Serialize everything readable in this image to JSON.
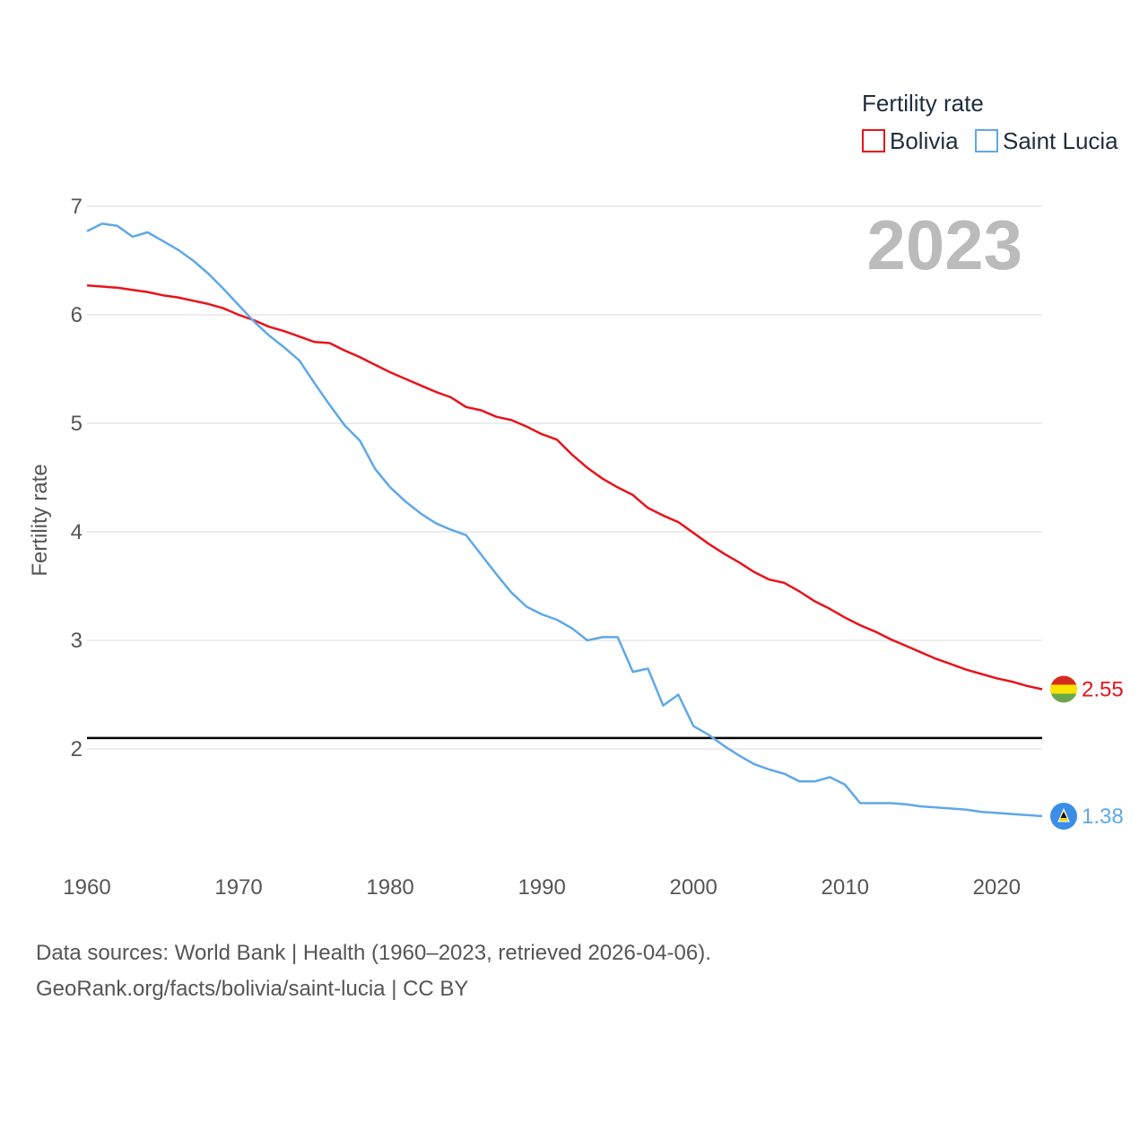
{
  "chart_data": {
    "type": "line",
    "legend_title": "Fertility rate",
    "ylabel": "Fertility rate",
    "year_label": "2023",
    "x_ticks": [
      "1960",
      "1970",
      "1980",
      "1990",
      "2000",
      "2010",
      "2020"
    ],
    "y_ticks": [
      "7",
      "6",
      "5",
      "4",
      "3",
      "2"
    ],
    "xlim": [
      1960,
      2023
    ],
    "ylim": [
      1.0,
      7.0
    ],
    "reference_line": 2.1,
    "x": [
      1960,
      1961,
      1962,
      1963,
      1964,
      1965,
      1966,
      1967,
      1968,
      1969,
      1970,
      1971,
      1972,
      1973,
      1974,
      1975,
      1976,
      1977,
      1978,
      1979,
      1980,
      1981,
      1982,
      1983,
      1984,
      1985,
      1986,
      1987,
      1988,
      1989,
      1990,
      1991,
      1992,
      1993,
      1994,
      1995,
      1996,
      1997,
      1998,
      1999,
      2000,
      2001,
      2002,
      2003,
      2004,
      2005,
      2006,
      2007,
      2008,
      2009,
      2010,
      2011,
      2012,
      2013,
      2014,
      2015,
      2016,
      2017,
      2018,
      2019,
      2020,
      2021,
      2022,
      2023
    ],
    "series": [
      {
        "name": "Bolivia",
        "color": "#e8131b",
        "end_label": "2.55",
        "flag": "bolivia-flag",
        "values": [
          6.27,
          6.26,
          6.25,
          6.23,
          6.21,
          6.18,
          6.16,
          6.13,
          6.1,
          6.06,
          6.0,
          5.95,
          5.89,
          5.85,
          5.8,
          5.75,
          5.74,
          5.67,
          5.61,
          5.54,
          5.47,
          5.41,
          5.35,
          5.29,
          5.24,
          5.15,
          5.12,
          5.06,
          5.03,
          4.97,
          4.9,
          4.85,
          4.71,
          4.59,
          4.49,
          4.41,
          4.34,
          4.22,
          4.15,
          4.09,
          3.99,
          3.89,
          3.8,
          3.72,
          3.63,
          3.56,
          3.53,
          3.45,
          3.36,
          3.29,
          3.21,
          3.14,
          3.08,
          3.01,
          2.95,
          2.89,
          2.83,
          2.78,
          2.73,
          2.69,
          2.65,
          2.62,
          2.58,
          2.55
        ]
      },
      {
        "name": "Saint Lucia",
        "color": "#5ea8e8",
        "end_label": "1.38",
        "flag": "saint-lucia-flag",
        "values": [
          6.77,
          6.84,
          6.82,
          6.72,
          6.76,
          6.68,
          6.6,
          6.5,
          6.38,
          6.24,
          6.09,
          5.94,
          5.81,
          5.7,
          5.58,
          5.37,
          5.17,
          4.98,
          4.84,
          4.58,
          4.41,
          4.28,
          4.17,
          4.08,
          4.02,
          3.97,
          3.79,
          3.61,
          3.44,
          3.31,
          3.24,
          3.19,
          3.11,
          3.0,
          3.03,
          3.03,
          2.71,
          2.74,
          2.4,
          2.5,
          2.21,
          2.13,
          2.03,
          1.94,
          1.86,
          1.81,
          1.77,
          1.7,
          1.7,
          1.74,
          1.67,
          1.5,
          1.5,
          1.5,
          1.49,
          1.47,
          1.46,
          1.45,
          1.44,
          1.42,
          1.41,
          1.4,
          1.39,
          1.38
        ]
      }
    ]
  },
  "footer": {
    "line1": "Data sources: World Bank | Health (1960–2023, retrieved 2026-04-06).",
    "line2": "GeoRank.org/facts/bolivia/saint-lucia | CC BY"
  }
}
